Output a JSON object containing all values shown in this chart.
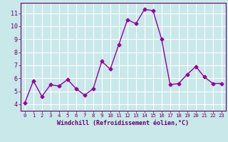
{
  "x": [
    0,
    1,
    2,
    3,
    4,
    5,
    6,
    7,
    8,
    9,
    10,
    11,
    12,
    13,
    14,
    15,
    16,
    17,
    18,
    19,
    20,
    21,
    22,
    23
  ],
  "y": [
    4.1,
    5.8,
    4.6,
    5.5,
    5.4,
    5.9,
    5.2,
    4.7,
    5.2,
    7.3,
    6.7,
    8.6,
    10.5,
    10.2,
    11.3,
    11.2,
    9.0,
    5.5,
    5.6,
    6.3,
    6.9,
    6.1,
    5.6,
    5.6
  ],
  "line_color": "#990099",
  "marker": "D",
  "marker_size": 2.5,
  "bg_color": "#c8e8ea",
  "grid_color": "#aad4d8",
  "xlabel": "Windchill (Refroidissement éolien,°C)",
  "xlabel_color": "#660066",
  "tick_color": "#660066",
  "ylim": [
    3.5,
    11.8
  ],
  "yticks": [
    4,
    5,
    6,
    7,
    8,
    9,
    10,
    11
  ],
  "xlim": [
    -0.5,
    23.5
  ],
  "line_width": 1.0
}
